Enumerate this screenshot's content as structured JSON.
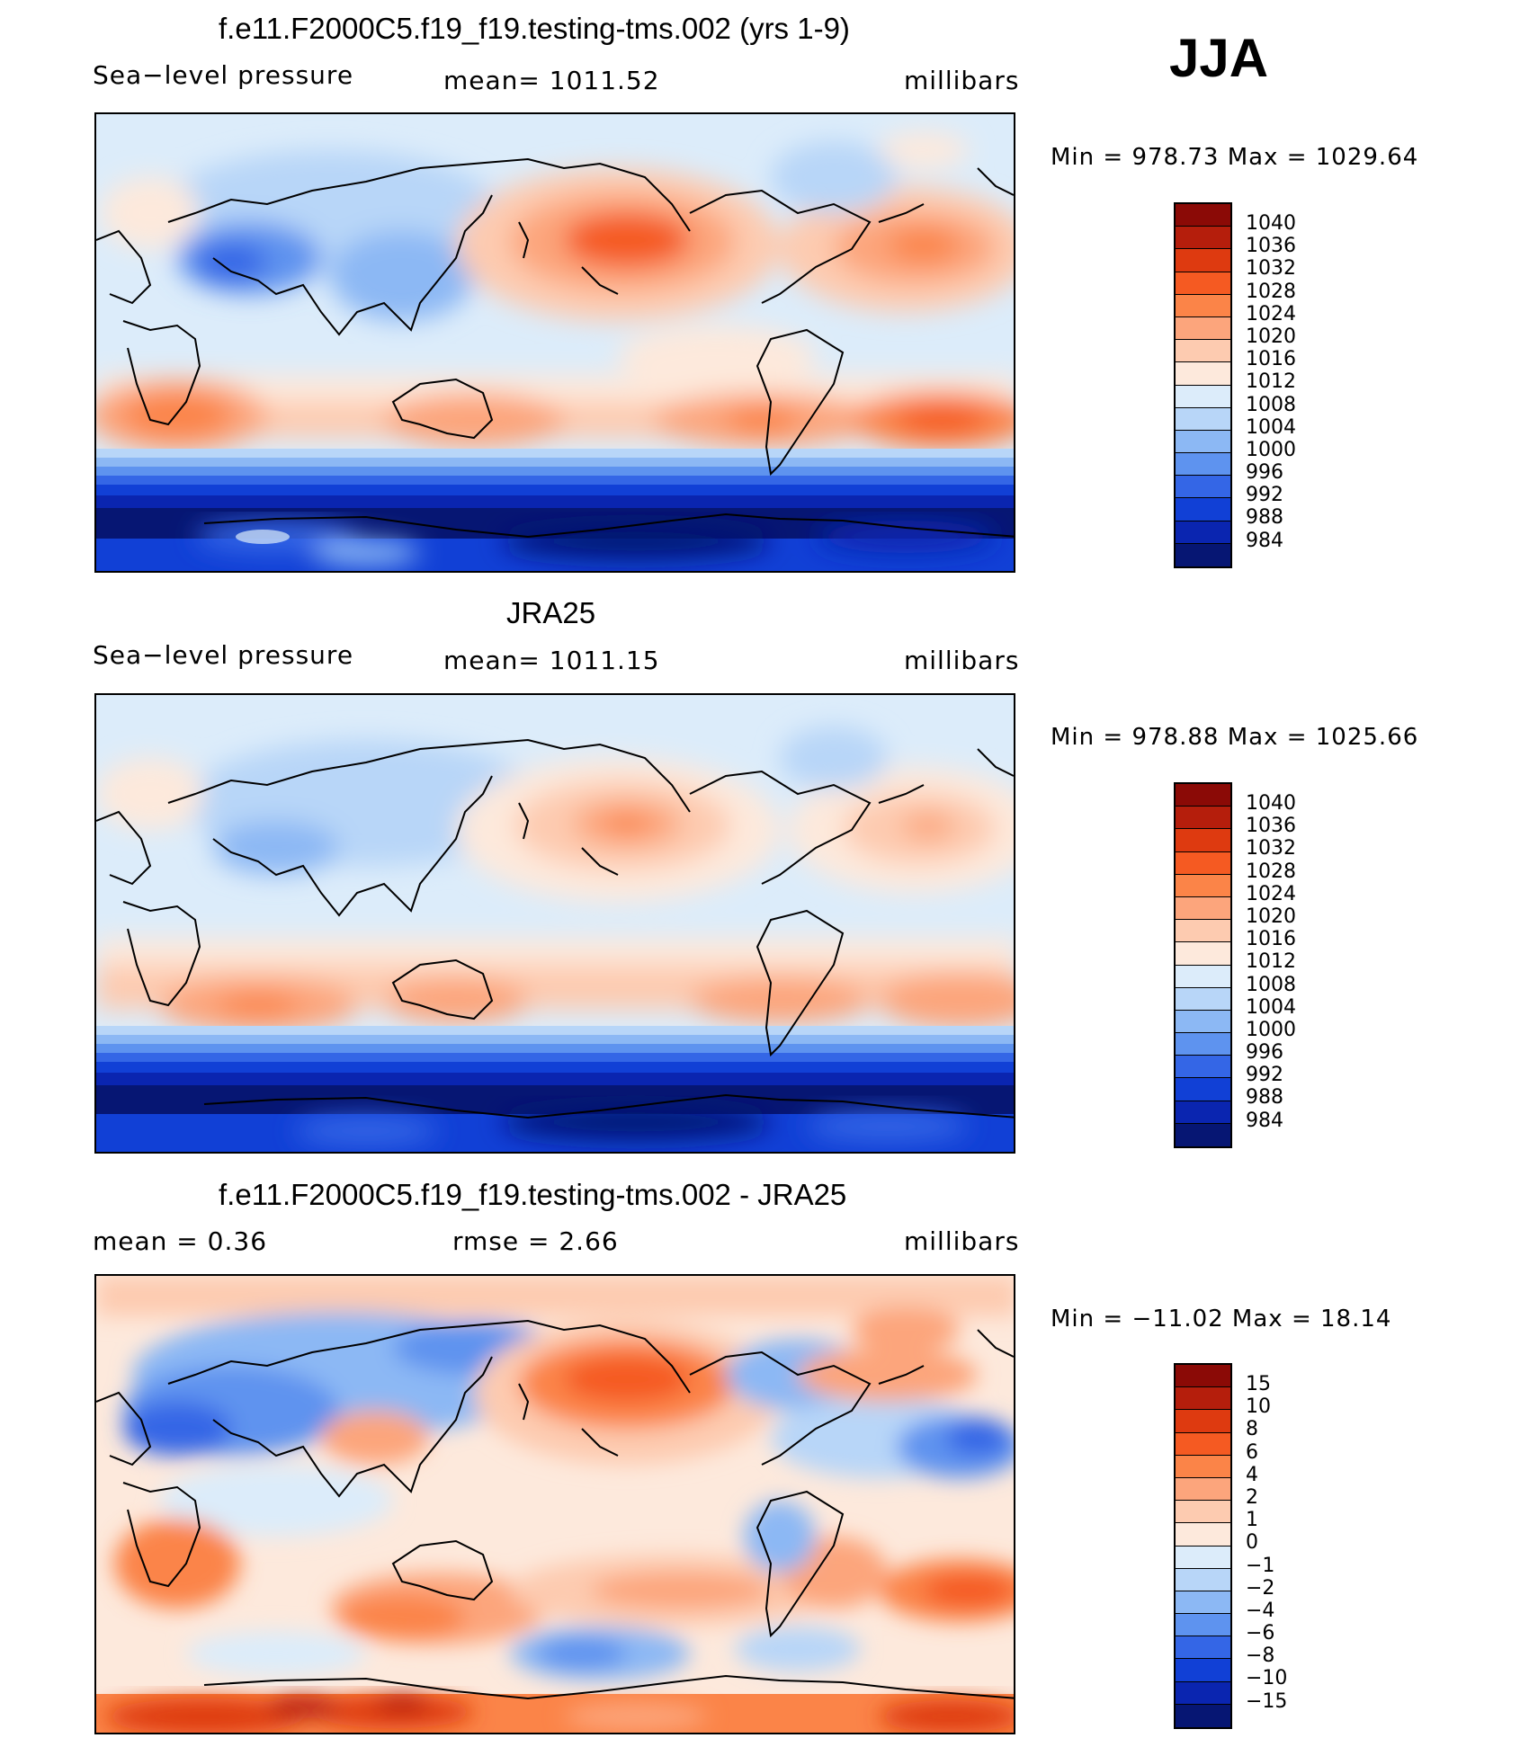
{
  "season": "JJA",
  "units_label": "millibars",
  "panels": [
    {
      "title": "f.e11.F2000C5.f19_f19.testing-tms.002 (yrs 1-9)",
      "left": "Sea−level pressure",
      "center": "mean=  1011.52",
      "right": "millibars",
      "minmax": "Min  =  978.73  Max  =  1029.64"
    },
    {
      "title": "JRA25",
      "left": "Sea−level pressure",
      "center": "mean=  1011.15",
      "right": "millibars",
      "minmax": "Min  =  978.88  Max  =  1025.66"
    },
    {
      "title": "f.e11.F2000C5.f19_f19.testing-tms.002 - JRA25",
      "left": "mean  =     0.36",
      "center": "rmse  =     2.66",
      "right": "millibars",
      "minmax": "Min  =  −11.02  Max  =    18.14"
    }
  ],
  "legend_slp": {
    "labels": [
      "1040",
      "1036",
      "1032",
      "1028",
      "1024",
      "1020",
      "1016",
      "1012",
      "1008",
      "1004",
      "1000",
      "996",
      "992",
      "988",
      "984"
    ],
    "colors": [
      "#8b0a06",
      "#b51e0c",
      "#de3a10",
      "#f55a22",
      "#fb8448",
      "#fca57c",
      "#fdcbb0",
      "#fde9dc",
      "#dcecfa",
      "#b8d6f8",
      "#8cb8f4",
      "#5e93ef",
      "#3466e6",
      "#1140d6",
      "#0a25b0",
      "#061673"
    ]
  },
  "legend_diff": {
    "labels": [
      "15",
      "10",
      "8",
      "6",
      "4",
      "2",
      "1",
      "0",
      "−1",
      "−2",
      "−4",
      "−6",
      "−8",
      "−10",
      "−15"
    ],
    "colors": [
      "#8b0a06",
      "#b51e0c",
      "#de3a10",
      "#f55a22",
      "#fb8448",
      "#fca57c",
      "#fdcbb0",
      "#fde9dc",
      "#dcecfa",
      "#b8d6f8",
      "#8cb8f4",
      "#5e93ef",
      "#3466e6",
      "#1140d6",
      "#0a25b0",
      "#061673"
    ]
  }
}
